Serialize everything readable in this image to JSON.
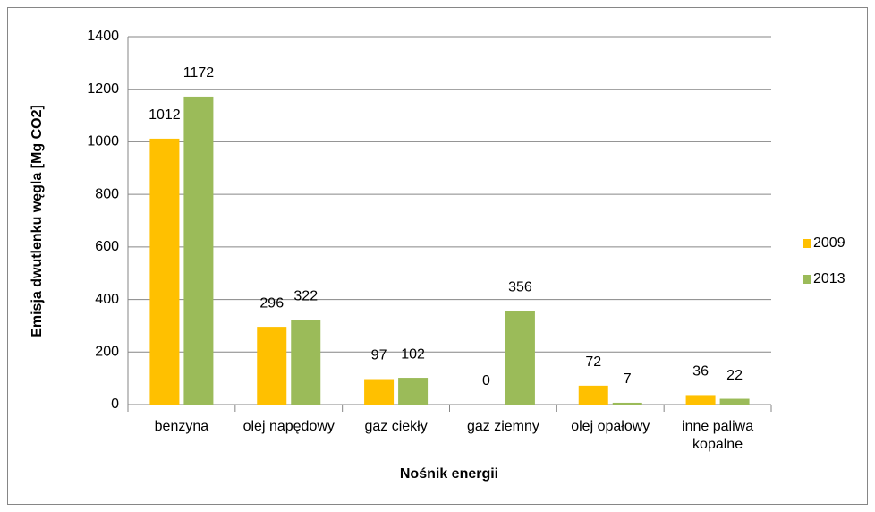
{
  "chart_data": {
    "type": "bar",
    "categories": [
      "benzyna",
      "olej napędowy",
      "gaz ciekły",
      "gaz ziemny",
      "olej opałowy",
      "inne paliwa kopalne"
    ],
    "series": [
      {
        "name": "2009",
        "color": "#ffc000",
        "values": [
          1012,
          296,
          97,
          0,
          72,
          36
        ]
      },
      {
        "name": "2013",
        "color": "#9bbb59",
        "values": [
          1172,
          322,
          102,
          356,
          7,
          22
        ]
      }
    ],
    "xlabel": "Nośnik energii",
    "ylabel": "Emisja dwutlenku węgla [Mg CO2]",
    "ylim": [
      0,
      1400
    ],
    "yticks": [
      0,
      200,
      400,
      600,
      800,
      1000,
      1200,
      1400
    ],
    "grid": true,
    "legend": "right"
  }
}
